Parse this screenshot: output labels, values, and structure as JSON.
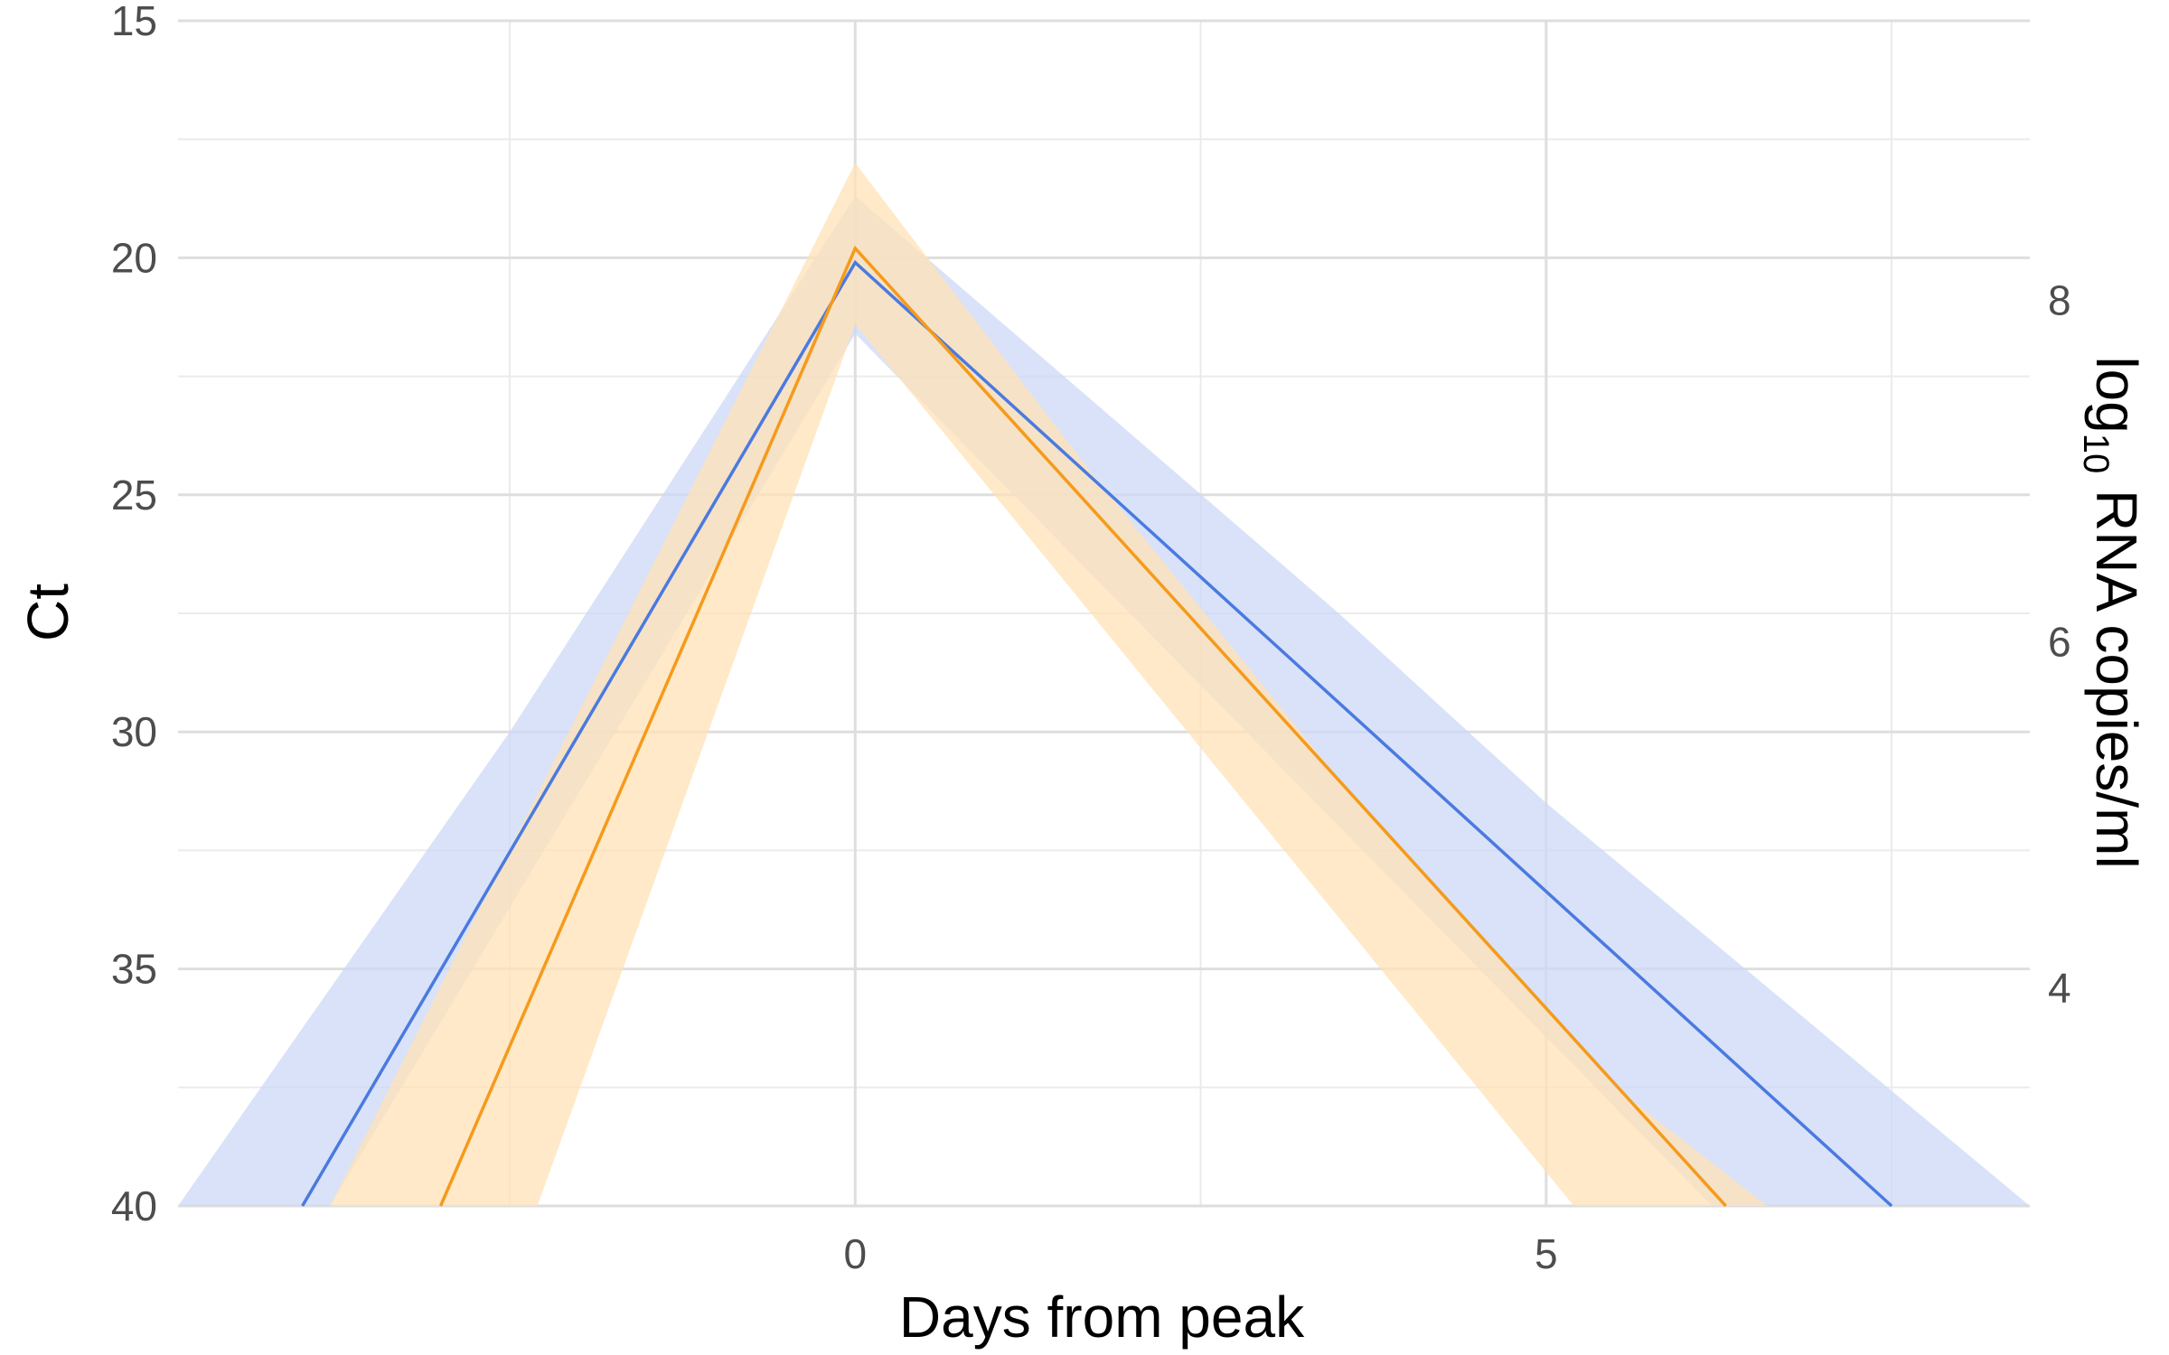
{
  "chart_data": {
    "type": "line",
    "title": "",
    "xlabel": "Days from peak",
    "ylabel": "Ct",
    "y2label": {
      "prefix": "log",
      "subscript": "10",
      "suffix": " RNA copies/ml"
    },
    "xlim": [
      -4.9,
      8.5
    ],
    "ylim": [
      15,
      40
    ],
    "y_reversed": true,
    "x_ticks": [
      0,
      5
    ],
    "y_ticks": [
      15,
      20,
      25,
      30,
      35,
      40
    ],
    "y2_ticks": [
      {
        "label": "8",
        "ct": 20.9
      },
      {
        "label": "6",
        "ct": 28.1
      },
      {
        "label": "4",
        "ct": 35.4
      }
    ],
    "grid": true,
    "legend": "none",
    "series": [
      {
        "color": "#4a7ae0",
        "band_color": "#ccd8f5",
        "x": [
          -4.0,
          0,
          7.5
        ],
        "y": [
          40,
          20.1,
          40
        ],
        "lower": [
          {
            "x": -4.9,
            "y": 40
          },
          {
            "x": -2.5,
            "y": 30
          },
          {
            "x": 0,
            "y": 18.7
          },
          {
            "x": 3.5,
            "y": 27.5
          },
          {
            "x": 5.0,
            "y": 31.5
          },
          {
            "x": 8.5,
            "y": 40
          }
        ],
        "upper": [
          {
            "x": 6.2,
            "y": 40
          },
          {
            "x": 0,
            "y": 21.6
          },
          {
            "x": -3.8,
            "y": 40
          }
        ]
      },
      {
        "color": "#f59a1b",
        "band_color": "#ffe2b5",
        "x": [
          -3.0,
          0,
          6.3
        ],
        "y": [
          40,
          19.8,
          40
        ],
        "lower": [
          {
            "x": -3.8,
            "y": 40
          },
          {
            "x": 0,
            "y": 18.0
          },
          {
            "x": 1.7,
            "y": 24.5
          },
          {
            "x": 3.5,
            "y": 31.0
          },
          {
            "x": 5.5,
            "y": 37.5
          },
          {
            "x": 6.6,
            "y": 40
          }
        ],
        "upper": [
          {
            "x": 5.2,
            "y": 40
          },
          {
            "x": 0,
            "y": 21.4
          },
          {
            "x": -2.3,
            "y": 40
          }
        ]
      }
    ]
  }
}
